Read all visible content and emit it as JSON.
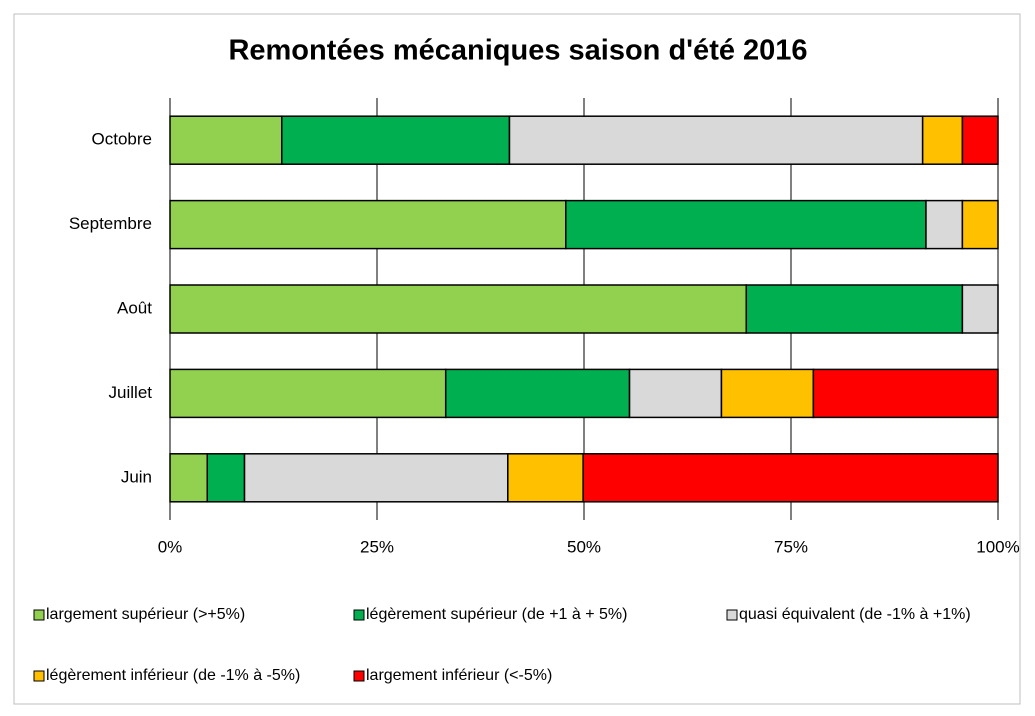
{
  "chart_data": {
    "type": "stacked-bar-horizontal",
    "title": "Remontées mécaniques saison d'été 2016",
    "categories": [
      "Octobre",
      "Septembre",
      "Août",
      "Juillet",
      "Juin"
    ],
    "series": [
      {
        "name": "largement supérieur (>+5%)",
        "color": "#92d050",
        "values": [
          13.5,
          47.8,
          69.6,
          33.3,
          4.5
        ]
      },
      {
        "name": "légèrement supérieur (de +1 à + 5%)",
        "color": "#00b050",
        "values": [
          27.5,
          43.5,
          26.1,
          22.2,
          4.5
        ]
      },
      {
        "name": "quasi équivalent (de -1% à +1%)",
        "color": "#d9d9d9",
        "values": [
          49.9,
          4.4,
          4.3,
          11.1,
          31.8
        ]
      },
      {
        "name": "légèrement inférieur (de -1% à -5%)",
        "color": "#ffc000",
        "values": [
          4.8,
          4.3,
          0,
          11.1,
          9.1
        ]
      },
      {
        "name": "largement inférieur (<-5%)",
        "color": "#ff0000",
        "values": [
          4.3,
          0,
          0,
          22.3,
          50.1
        ]
      }
    ],
    "xlim": [
      0,
      100
    ],
    "xticks": [
      {
        "value": 0,
        "label": "0%"
      },
      {
        "value": 25,
        "label": "25%"
      },
      {
        "value": 50,
        "label": "50%"
      },
      {
        "value": 75,
        "label": "75%"
      },
      {
        "value": 100,
        "label": "100%"
      }
    ],
    "grid": true,
    "legend": "bottom"
  }
}
